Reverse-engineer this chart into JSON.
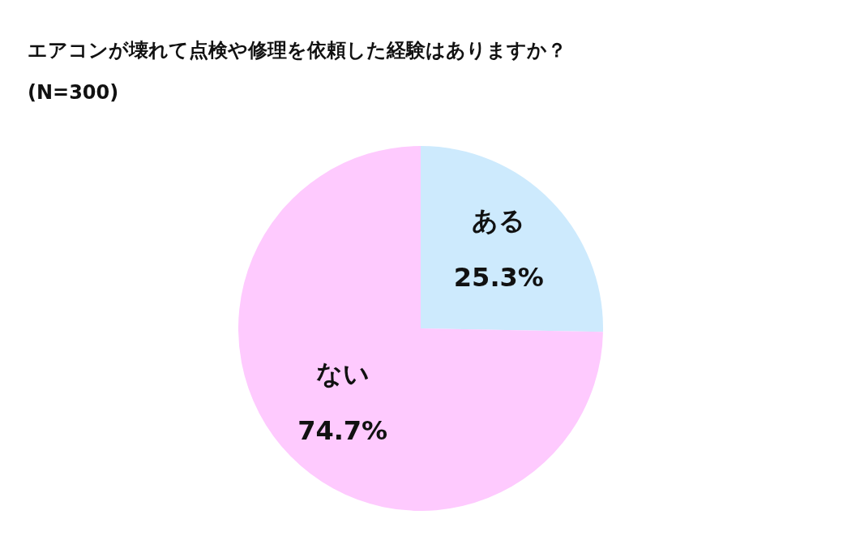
{
  "chart_data": {
    "type": "pie",
    "title": "エアコンが壊れて点検や修理を依頼した経験はありますか？",
    "subtitle": "(N=300)",
    "categories": [
      "ある",
      "ない"
    ],
    "values": [
      25.3,
      74.7
    ],
    "colors": [
      "#cdeafd",
      "#fecafe"
    ],
    "value_labels": [
      "25.3%",
      "74.7%"
    ],
    "legend": false
  }
}
